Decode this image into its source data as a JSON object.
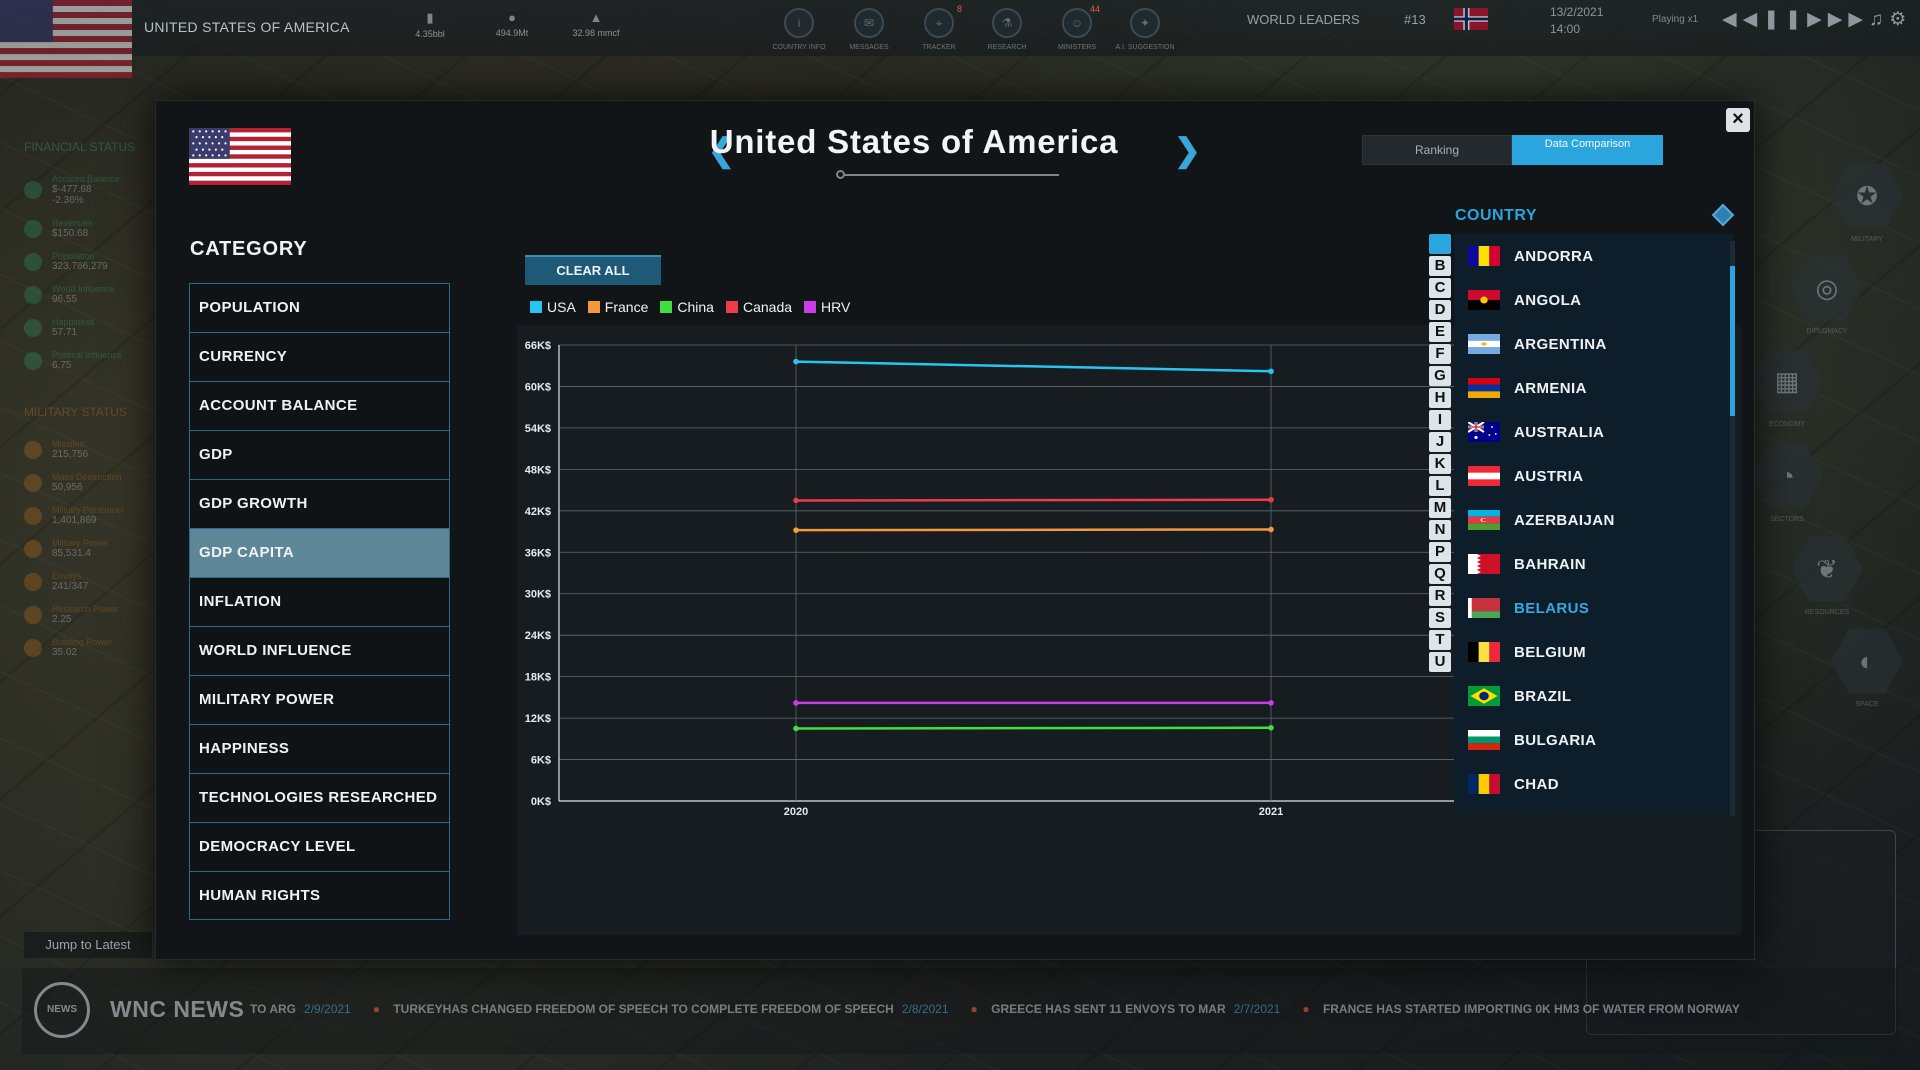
{
  "topbar": {
    "country": "UNITED STATES OF AMERICA",
    "stats": [
      {
        "icon": "barrel-icon",
        "value": "4.35bbl"
      },
      {
        "icon": "ore-icon",
        "value": "494.9Mt"
      },
      {
        "icon": "gas-flame-icon",
        "value": "32.98 mmcf"
      }
    ],
    "nav": [
      {
        "label": "COUNTRY INFO",
        "badge": ""
      },
      {
        "label": "MESSAGES",
        "badge": ""
      },
      {
        "label": "TRACKER",
        "badge": "8"
      },
      {
        "label": "RESEARCH",
        "badge": ""
      },
      {
        "label": "MINISTERS",
        "badge": "44"
      },
      {
        "label": "A.I. SUGGESTION",
        "badge": ""
      }
    ],
    "world_leaders_label": "WORLD LEADERS",
    "rank": "#13",
    "date": "13/2/2021",
    "time": "14:00",
    "playing": "Playing x1"
  },
  "left_panel": {
    "financial_title": "FINANCIAL STATUS",
    "financial": [
      {
        "label": "Account Balance",
        "value": "$-477.68",
        "sub": "-2.36%"
      },
      {
        "label": "Revenues",
        "value": "$150.68"
      },
      {
        "label": "Population",
        "value": "323,766,279"
      },
      {
        "label": "World Influence",
        "value": "96.55"
      },
      {
        "label": "Happiness",
        "value": "57.71"
      },
      {
        "label": "Political Influence",
        "value": "6.75"
      }
    ],
    "military_title": "MILITARY STATUS",
    "military": [
      {
        "label": "Missiles",
        "value": "215,756"
      },
      {
        "label": "Mass Destruction",
        "value": "50,956"
      },
      {
        "label": "Military Personnel",
        "value": "1,401,869"
      },
      {
        "label": "Military Power",
        "value": "85,531.4"
      },
      {
        "label": "Envoys",
        "value": "241/347"
      },
      {
        "label": "Research Power",
        "value": "2.25"
      },
      {
        "label": "Building Power",
        "value": "35.02"
      }
    ],
    "jump_label": "Jump to Latest"
  },
  "right_nav": [
    "MILITARY",
    "DIPLOMACY",
    "ECONOMY",
    "SECTORS",
    "RESOURCES",
    "SPACE"
  ],
  "news": {
    "title": "WNC NEWS",
    "items": [
      {
        "text": "TO ARG",
        "date": "2/9/2021"
      },
      {
        "text": "TURKEYHAS CHANGED FREEDOM OF SPEECH TO COMPLETE FREEDOM OF SPEECH",
        "date": "2/8/2021"
      },
      {
        "text": "GREECE HAS SENT 11 ENVOYS TO MAR",
        "date": "2/7/2021"
      },
      {
        "text": "FRANCE HAS STARTED IMPORTING 0K HM3 OF WATER FROM NORWAY",
        "date": ""
      }
    ]
  },
  "modal": {
    "title": "United States of America",
    "tab_ranking": "Ranking",
    "tab_data": "Data Comparison",
    "category_title": "CATEGORY",
    "categories": [
      "POPULATION",
      "CURRENCY",
      "ACCOUNT BALANCE",
      "GDP",
      "GDP GROWTH",
      "GDP CAPITA",
      "INFLATION",
      "WORLD INFLUENCE",
      "MILITARY POWER",
      "HAPPINESS",
      "TECHNOLOGIES RESEARCHED",
      "DEMOCRACY LEVEL",
      "HUMAN RIGHTS"
    ],
    "active_category": "GDP CAPITA",
    "clear_all": "CLEAR ALL",
    "country_title": "COUNTRY",
    "alphabet": [
      "A",
      "B",
      "C",
      "D",
      "E",
      "F",
      "G",
      "H",
      "I",
      "J",
      "K",
      "L",
      "M",
      "N",
      "P",
      "Q",
      "R",
      "S",
      "T",
      "U"
    ],
    "countries": [
      "ANDORRA",
      "ANGOLA",
      "ARGENTINA",
      "ARMENIA",
      "AUSTRALIA",
      "AUSTRIA",
      "AZERBAIJAN",
      "BAHRAIN",
      "BELARUS",
      "BELGIUM",
      "BRAZIL",
      "BULGARIA",
      "CHAD"
    ],
    "selected_country": "BELARUS"
  },
  "colors": {
    "accent": "#2ba5dd",
    "usa": "#29c5f2",
    "france": "#f59a3c",
    "china": "#3de03d",
    "canada": "#ec3b4a",
    "hrv": "#cc3de6"
  },
  "chart_data": {
    "type": "line",
    "x": [
      "2020",
      "2021"
    ],
    "series": [
      {
        "name": "USA",
        "values": [
          63600,
          62200
        ],
        "color": "#29c5f2"
      },
      {
        "name": "France",
        "values": [
          39200,
          39300
        ],
        "color": "#f59a3c"
      },
      {
        "name": "China",
        "values": [
          10500,
          10600
        ],
        "color": "#3de03d"
      },
      {
        "name": "Canada",
        "values": [
          43500,
          43600
        ],
        "color": "#ec3b4a"
      },
      {
        "name": "HRV",
        "values": [
          14200,
          14200
        ],
        "color": "#cc3de6"
      }
    ],
    "yticks": [
      "0K$",
      "6K$",
      "12K$",
      "18K$",
      "24K$",
      "30K$",
      "36K$",
      "42K$",
      "48K$",
      "54K$",
      "60K$",
      "66K$"
    ],
    "ylim": [
      0,
      66000
    ],
    "grid": true
  }
}
